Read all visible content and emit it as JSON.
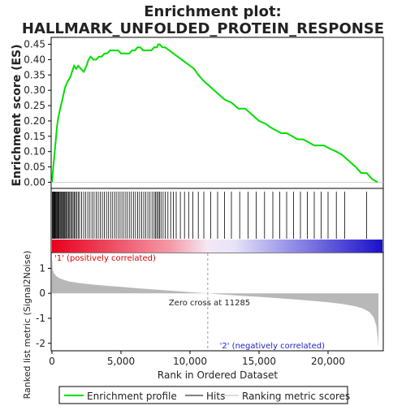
{
  "chart_data": {
    "title": "Enrichment plot:\nHALLMARK_UNFOLDED_PROTEIN_RESPONSE",
    "title_lines": [
      "Enrichment plot:",
      "HALLMARK_UNFOLDED_PROTEIN_RESPONSE"
    ],
    "xlabel": "Rank in Ordered Dataset",
    "xlim": [
      0,
      24000
    ],
    "x_ticks": [
      0,
      5000,
      10000,
      15000,
      20000
    ],
    "x_tick_labels": [
      "0",
      "5,000",
      "10,000",
      "15,000",
      "20,000"
    ],
    "es_panel": {
      "type": "line",
      "ylabel": "Enrichment score (ES)",
      "ylim": [
        -0.02,
        0.47
      ],
      "y_ticks": [
        0.0,
        0.05,
        0.1,
        0.15,
        0.2,
        0.25,
        0.3,
        0.35,
        0.4,
        0.45
      ],
      "y_tick_labels": [
        "0.00",
        "0.05",
        "0.10",
        "0.15",
        "0.20",
        "0.25",
        "0.30",
        "0.35",
        "0.40",
        "0.45"
      ],
      "series": [
        {
          "name": "Enrichment profile",
          "color": "#00dd00",
          "x": [
            0,
            60,
            120,
            200,
            280,
            360,
            450,
            550,
            650,
            750,
            850,
            950,
            1050,
            1150,
            1300,
            1450,
            1600,
            1750,
            1900,
            2100,
            2300,
            2500,
            2650,
            2800,
            3000,
            3200,
            3400,
            3600,
            3800,
            4000,
            4200,
            4400,
            4600,
            4800,
            5000,
            5200,
            5400,
            5600,
            5800,
            6000,
            6200,
            6400,
            6600,
            6800,
            7000,
            7200,
            7400,
            7600,
            7700,
            7800,
            8000,
            8200,
            8500,
            8800,
            9100,
            9400,
            9700,
            10000,
            10300,
            10600,
            11000,
            11500,
            12000,
            12500,
            13000,
            13500,
            14000,
            14500,
            15000,
            15500,
            15800,
            16200,
            16600,
            17000,
            17400,
            17800,
            18200,
            18600,
            19000,
            19300,
            19700,
            20100,
            20600,
            21000,
            21500,
            22000,
            22400,
            22800,
            23200,
            23600
          ],
          "y": [
            0.0,
            0.03,
            0.06,
            0.1,
            0.14,
            0.18,
            0.21,
            0.23,
            0.25,
            0.27,
            0.29,
            0.31,
            0.32,
            0.33,
            0.34,
            0.36,
            0.38,
            0.37,
            0.38,
            0.37,
            0.36,
            0.38,
            0.4,
            0.41,
            0.4,
            0.4,
            0.41,
            0.41,
            0.42,
            0.42,
            0.43,
            0.43,
            0.43,
            0.43,
            0.42,
            0.42,
            0.42,
            0.42,
            0.43,
            0.43,
            0.44,
            0.44,
            0.43,
            0.43,
            0.43,
            0.43,
            0.44,
            0.44,
            0.45,
            0.45,
            0.44,
            0.44,
            0.43,
            0.42,
            0.41,
            0.4,
            0.39,
            0.38,
            0.37,
            0.35,
            0.33,
            0.31,
            0.29,
            0.27,
            0.26,
            0.24,
            0.24,
            0.22,
            0.2,
            0.19,
            0.18,
            0.17,
            0.16,
            0.16,
            0.15,
            0.14,
            0.14,
            0.13,
            0.12,
            0.12,
            0.12,
            0.11,
            0.1,
            0.09,
            0.07,
            0.05,
            0.03,
            0.03,
            0.01,
            0.0
          ]
        }
      ]
    },
    "hits_panel": {
      "type": "hits",
      "positions": [
        30,
        60,
        90,
        130,
        180,
        220,
        270,
        320,
        380,
        430,
        480,
        530,
        600,
        660,
        720,
        780,
        850,
        920,
        990,
        1050,
        1120,
        1200,
        1280,
        1360,
        1450,
        1530,
        1620,
        1700,
        1800,
        1900,
        2000,
        2150,
        2300,
        2450,
        2600,
        2750,
        2900,
        3050,
        3200,
        3350,
        3500,
        3650,
        3800,
        3950,
        4100,
        4250,
        4400,
        4550,
        4700,
        4850,
        5000,
        5150,
        5300,
        5450,
        5600,
        5750,
        5900,
        6050,
        6200,
        6350,
        6500,
        6650,
        6800,
        6950,
        7100,
        7250,
        7400,
        7500,
        7600,
        7700,
        7800,
        7900,
        8050,
        8200,
        8400,
        8600,
        8800,
        9000,
        9300,
        9600,
        9900,
        10200,
        10600,
        11000,
        11500,
        12000,
        12500,
        13000,
        13600,
        14200,
        14800,
        15400,
        16000,
        16500,
        17000,
        17500,
        18000,
        18500,
        19000,
        19500,
        20000,
        20600,
        21200,
        22800
      ]
    },
    "color_bar": {
      "label_pos": "'1' (positively correlated)",
      "label_neg": "'2' (negatively correlated)",
      "pos_color": "#e8001c",
      "neg_color": "#1a10c8"
    },
    "metric_panel": {
      "type": "area",
      "ylabel": "Ranked list metric (Signal2Noise)",
      "ylim": [
        -2.3,
        1.6
      ],
      "y_ticks": [
        -2,
        -1,
        0,
        1
      ],
      "y_tick_labels": [
        "-2",
        "-1",
        "0",
        "1"
      ],
      "zero_cross_label": "Zero cross at 11285",
      "zero_cross": 11285,
      "x": [
        0,
        50,
        150,
        300,
        500,
        800,
        1200,
        2000,
        3000,
        4000,
        5000,
        6000,
        7000,
        8000,
        9000,
        10000,
        11285,
        12000,
        13000,
        14000,
        15000,
        16000,
        17000,
        18000,
        19000,
        20000,
        21000,
        22000,
        22500,
        23000,
        23300,
        23500,
        23600,
        23650
      ],
      "y": [
        1.45,
        0.95,
        0.8,
        0.7,
        0.62,
        0.55,
        0.48,
        0.41,
        0.35,
        0.3,
        0.26,
        0.21,
        0.17,
        0.13,
        0.09,
        0.05,
        0.0,
        -0.03,
        -0.07,
        -0.11,
        -0.14,
        -0.18,
        -0.22,
        -0.26,
        -0.31,
        -0.36,
        -0.42,
        -0.52,
        -0.6,
        -0.75,
        -0.95,
        -1.3,
        -1.8,
        -2.2
      ],
      "color": "#b8b8b8"
    },
    "legend": {
      "placement": "bottom",
      "entries": [
        {
          "label": "Enrichment profile",
          "color": "#00dd00"
        },
        {
          "label": "Hits",
          "color": "#000000"
        },
        {
          "label": "Ranking metric scores",
          "color": "#b8b8b8"
        }
      ]
    }
  }
}
